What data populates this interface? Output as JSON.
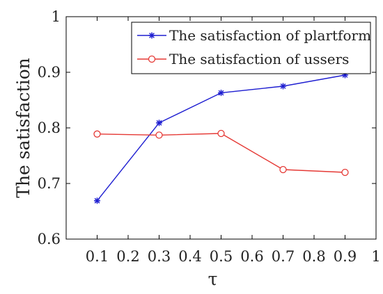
{
  "chart_data": {
    "type": "line",
    "title": "",
    "xlabel": "τ",
    "ylabel": "The satisfaction",
    "xlim": [
      0,
      1
    ],
    "ylim": [
      0.6,
      1
    ],
    "grid": false,
    "legend_position": "top-right",
    "x_ticks": [
      "0.1",
      "0.2",
      "0.3",
      "0.4",
      "0.5",
      "0.6",
      "0.7",
      "0.8",
      "0.9",
      "1"
    ],
    "y_ticks": [
      "0.6",
      "0.7",
      "0.8",
      "0.9",
      "1"
    ],
    "x_tick_values": [
      0.1,
      0.2,
      0.3,
      0.4,
      0.5,
      0.6,
      0.7,
      0.8,
      0.9,
      1
    ],
    "y_tick_values": [
      0.6,
      0.7,
      0.8,
      0.9,
      1
    ],
    "series": [
      {
        "name": "The satisfaction of plartform",
        "color": "#1f1fd1",
        "marker": "asterisk",
        "x": [
          0.1,
          0.3,
          0.5,
          0.7,
          0.9
        ],
        "y": [
          0.669,
          0.809,
          0.863,
          0.875,
          0.895
        ]
      },
      {
        "name": "The satisfaction of ussers",
        "color": "#e53935",
        "marker": "circle",
        "x": [
          0.1,
          0.3,
          0.5,
          0.7,
          0.9
        ],
        "y": [
          0.789,
          0.787,
          0.79,
          0.725,
          0.72
        ]
      }
    ]
  }
}
